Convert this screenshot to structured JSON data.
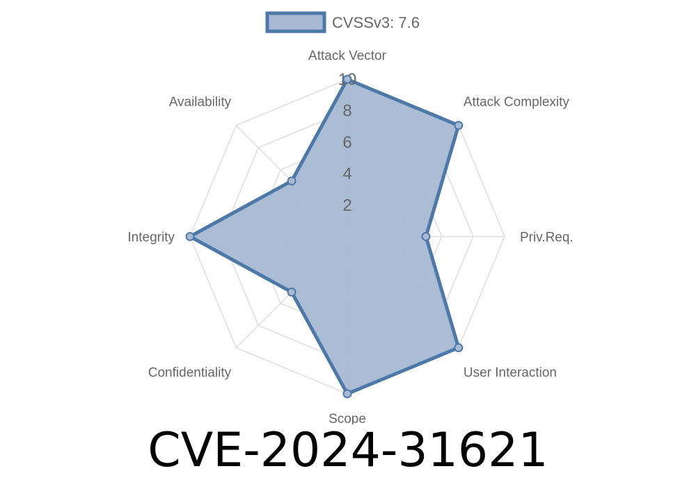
{
  "title": "CVE-2024-31621",
  "chart_data": {
    "type": "radar",
    "axes": [
      "Attack Vector",
      "Attack Complexity",
      "Priv.Req.",
      "User Interaction",
      "Scope",
      "Confidentiality",
      "Integrity",
      "Availability"
    ],
    "ticks": [
      2,
      4,
      6,
      8,
      10
    ],
    "rlim": [
      0,
      10
    ],
    "grid": true,
    "legend_position": "top",
    "series": [
      {
        "name": "CVSSv3: 7.6",
        "values": [
          10,
          10,
          5,
          10,
          10,
          5,
          10,
          5
        ]
      }
    ],
    "colors": {
      "line": "#4e79a7",
      "fill": "#a7b9d3",
      "grid": "#dddddd"
    }
  }
}
